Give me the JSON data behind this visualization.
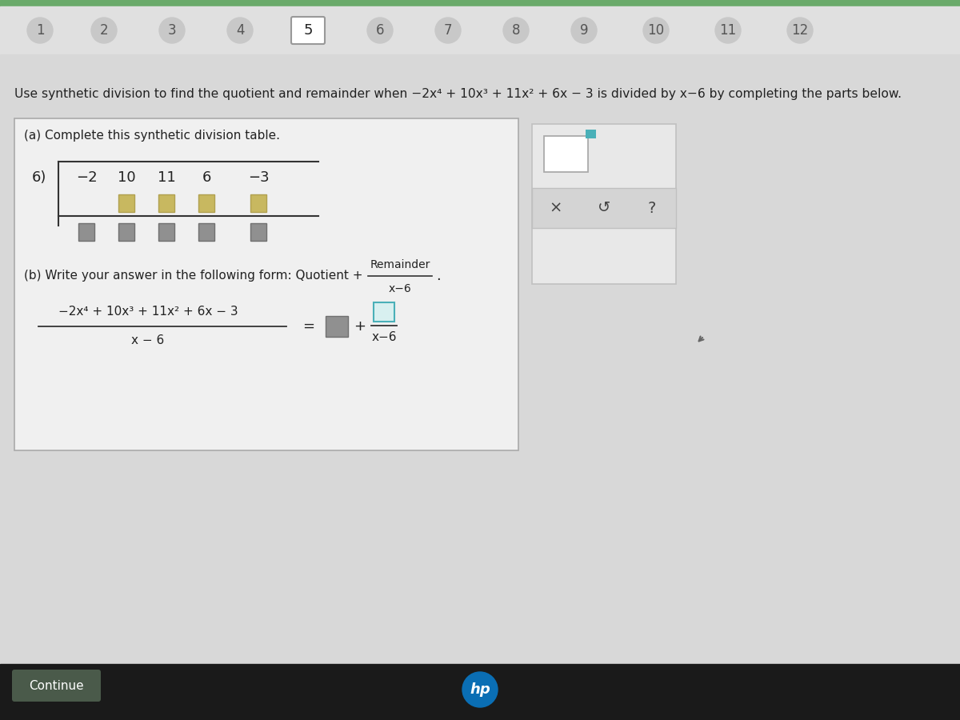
{
  "bg_top_color": "#6aaa6a",
  "bg_nav_color": "#e0e0e0",
  "bg_main_color": "#d8d8d8",
  "bg_bottom_color": "#1a1a1a",
  "nav_numbers": [
    "1",
    "2",
    "3",
    "4",
    "5",
    "6",
    "7",
    "8",
    "9",
    "10",
    "11",
    "12"
  ],
  "active_nav_idx": 4,
  "nav_circle_color": "#c8c8c8",
  "nav_active_border": "#999999",
  "nav_text_color": "#555555",
  "problem_text1": "Use synthetic division to find the quotient and remainder when −2x⁴ + 10x³ + 11x² + 6x − 3 is divided by x−6 by completing the parts below.",
  "part_a_label": "(a) Complete this synthetic division table.",
  "divisor": "6)",
  "coefficients": [
    "−2",
    "10",
    "11",
    "6",
    "−3"
  ],
  "box_color_yellow": "#c8b860",
  "box_color_gray": "#909090",
  "box_border_yellow": "#b0a050",
  "box_border_gray": "#707070",
  "part_b_label": "(b) Write your answer in the following form: Quotient +",
  "remainder_text": "Remainder",
  "denom_text": "x−6",
  "lhs_num": "−2x⁴ + 10x³ + 11x² + 6x − 3",
  "lhs_den": "x − 6",
  "ans_box_color": "#909090",
  "ans_box_border": "#707070",
  "ans_box2_color": "#c0d0d0",
  "ans_box2_border": "#4ab0c0",
  "input_box_white": "#ffffff",
  "input_box_border": "#aaaaaa",
  "teal_color": "#4ab0b8",
  "toolbar_bg": "#d0d0d0",
  "toolbar_border": "#b0b0b0",
  "content_box_bg": "#f0f0f0",
  "content_box_border": "#aaaaaa",
  "right_panel_bg": "#e8e8e8",
  "right_panel_border": "#c0c0c0",
  "right_toolbar_bg": "#d4d4d4",
  "continue_btn_bg": "#4a5a4a",
  "continue_btn_text": "#ffffff",
  "continue_text": "Continue",
  "text_color": "#222222",
  "line_color": "#333333",
  "cursor_color": "#666666"
}
